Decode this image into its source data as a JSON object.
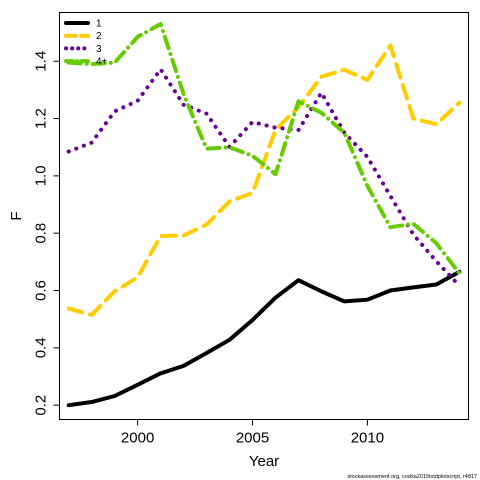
{
  "chart_data": {
    "type": "line",
    "xlabel": "Year",
    "ylabel": "F",
    "xlim": [
      1996.6,
      2014.4
    ],
    "ylim": [
      0.15,
      1.57
    ],
    "x_ticks": [
      2000,
      2005,
      2010
    ],
    "y_ticks": [
      0.2,
      0.4,
      0.6,
      0.8,
      1.0,
      1.2,
      1.4
    ],
    "y_tick_labels": [
      "0.2",
      "0.4",
      "0.6",
      "0.8",
      "1.0",
      "1.2",
      "1.4"
    ],
    "x": [
      1997,
      1998,
      1999,
      2000,
      2001,
      2002,
      2003,
      2004,
      2005,
      2006,
      2007,
      2008,
      2009,
      2010,
      2011,
      2012,
      2013,
      2014
    ],
    "legend_position": "top-left",
    "series": [
      {
        "name": "1",
        "color": "#000000",
        "dash": "solid",
        "values": [
          0.2,
          0.211,
          0.232,
          0.271,
          0.311,
          0.337,
          0.382,
          0.428,
          0.497,
          0.575,
          0.636,
          0.597,
          0.562,
          0.568,
          0.6,
          0.611,
          0.621,
          0.665
        ]
      },
      {
        "name": "2",
        "color": "#FFCC00",
        "dash": "long-dash",
        "values": [
          0.537,
          0.515,
          0.597,
          0.646,
          0.79,
          0.792,
          0.83,
          0.911,
          0.94,
          1.16,
          1.24,
          1.346,
          1.37,
          1.335,
          1.455,
          1.2,
          1.18,
          1.255
        ]
      },
      {
        "name": "3",
        "color": "#660099",
        "dash": "dotted",
        "values": [
          1.085,
          1.116,
          1.225,
          1.262,
          1.372,
          1.248,
          1.217,
          1.101,
          1.188,
          1.168,
          1.16,
          1.29,
          1.15,
          1.066,
          0.93,
          0.795,
          0.702,
          0.617
        ]
      },
      {
        "name": "4+",
        "color": "#66CC00",
        "dash": "dot-dash",
        "values": [
          1.395,
          1.39,
          1.395,
          1.485,
          1.53,
          1.285,
          1.095,
          1.1,
          1.07,
          1.006,
          1.26,
          1.22,
          1.15,
          0.965,
          0.821,
          0.833,
          0.765,
          0.66
        ]
      }
    ],
    "footnote": "stockassessment.org, codxa2015txtdplotscript, r4817"
  }
}
